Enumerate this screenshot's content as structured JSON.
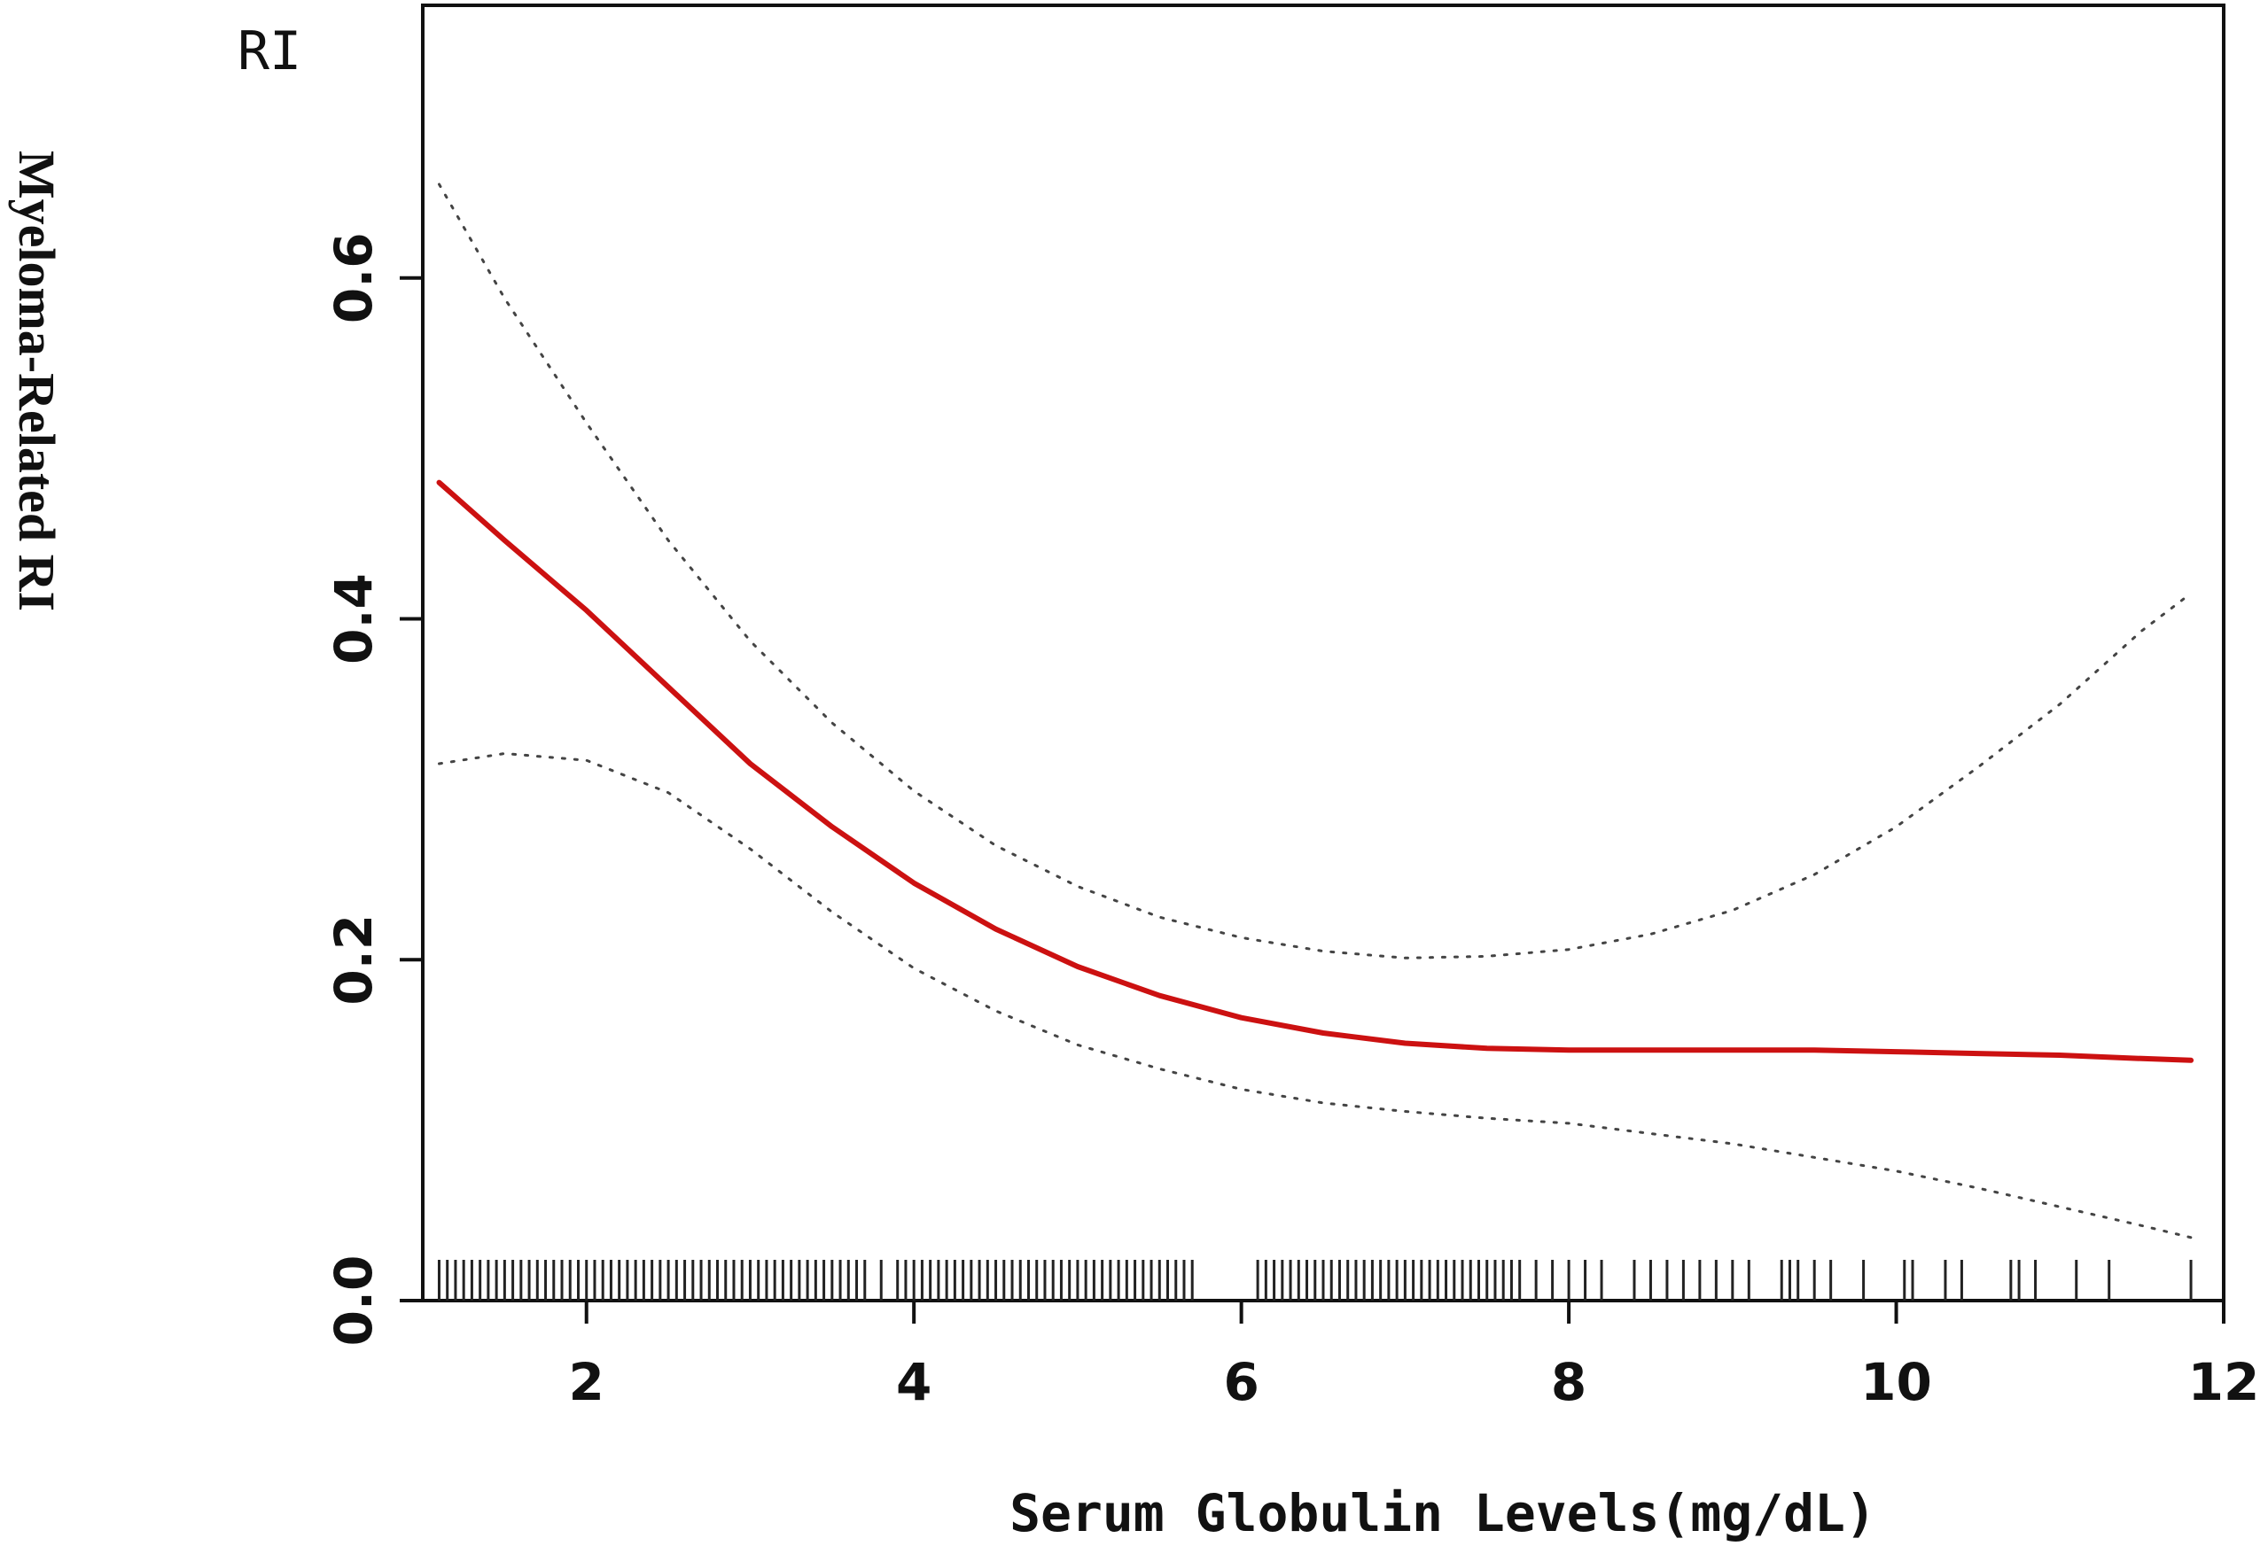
{
  "chart_data": {
    "type": "line",
    "panel_label": "RI",
    "xlabel": "Serum Globulin Levels(mg/dL)",
    "ylabel": "Myeloma-Related RI",
    "xlim": [
      1.0,
      12.0
    ],
    "ylim": [
      0.0,
      0.76
    ],
    "x_ticks": [
      2,
      4,
      6,
      8,
      10,
      12
    ],
    "x_tick_labels": [
      "2",
      "4",
      "6",
      "8",
      "10",
      "12"
    ],
    "y_ticks": [
      0.0,
      0.2,
      0.4,
      0.6
    ],
    "y_tick_labels": [
      "0.0",
      "0.2",
      "0.4",
      "0.6"
    ],
    "grid": false,
    "series": [
      {
        "role": "estimate",
        "style": "solid",
        "color": "#cc1111",
        "x": [
          1.1,
          1.5,
          2.0,
          2.5,
          3.0,
          3.5,
          4.0,
          4.5,
          5.0,
          5.5,
          6.0,
          6.5,
          7.0,
          7.5,
          8.0,
          8.5,
          9.0,
          9.5,
          10.0,
          10.5,
          11.0,
          11.5,
          11.8
        ],
        "y": [
          0.48,
          0.446,
          0.405,
          0.36,
          0.315,
          0.278,
          0.245,
          0.218,
          0.196,
          0.179,
          0.166,
          0.157,
          0.151,
          0.148,
          0.147,
          0.147,
          0.147,
          0.147,
          0.146,
          0.145,
          0.144,
          0.142,
          0.141
        ]
      },
      {
        "role": "upper_ci",
        "style": "dotted",
        "color": "#444444",
        "x": [
          1.1,
          1.5,
          2.0,
          2.5,
          3.0,
          3.5,
          4.0,
          4.5,
          5.0,
          5.5,
          6.0,
          6.5,
          7.0,
          7.5,
          8.0,
          8.5,
          9.0,
          9.5,
          10.0,
          10.5,
          11.0,
          11.5,
          11.8
        ],
        "y": [
          0.655,
          0.588,
          0.515,
          0.446,
          0.387,
          0.339,
          0.299,
          0.267,
          0.243,
          0.225,
          0.213,
          0.205,
          0.201,
          0.202,
          0.206,
          0.215,
          0.229,
          0.25,
          0.278,
          0.313,
          0.35,
          0.393,
          0.415
        ]
      },
      {
        "role": "lower_ci",
        "style": "dotted",
        "color": "#444444",
        "x": [
          1.1,
          1.5,
          2.0,
          2.5,
          3.0,
          3.5,
          4.0,
          4.5,
          5.0,
          5.5,
          6.0,
          6.5,
          7.0,
          7.5,
          8.0,
          8.5,
          9.0,
          9.5,
          10.0,
          10.5,
          11.0,
          11.5,
          11.8
        ],
        "y": [
          0.315,
          0.321,
          0.317,
          0.298,
          0.265,
          0.228,
          0.195,
          0.17,
          0.15,
          0.136,
          0.124,
          0.116,
          0.111,
          0.107,
          0.104,
          0.098,
          0.092,
          0.084,
          0.076,
          0.066,
          0.055,
          0.044,
          0.037
        ]
      }
    ],
    "rug_x": [
      1.1,
      1.15,
      1.2,
      1.25,
      1.3,
      1.35,
      1.4,
      1.45,
      1.5,
      1.55,
      1.6,
      1.65,
      1.7,
      1.75,
      1.8,
      1.85,
      1.9,
      1.95,
      2.0,
      2.05,
      2.1,
      2.15,
      2.2,
      2.25,
      2.3,
      2.35,
      2.4,
      2.45,
      2.5,
      2.55,
      2.6,
      2.65,
      2.7,
      2.75,
      2.8,
      2.85,
      2.9,
      2.95,
      3.0,
      3.05,
      3.1,
      3.15,
      3.2,
      3.25,
      3.3,
      3.35,
      3.4,
      3.45,
      3.5,
      3.55,
      3.6,
      3.65,
      3.7,
      3.8,
      3.9,
      3.95,
      4.0,
      4.05,
      4.1,
      4.15,
      4.2,
      4.25,
      4.3,
      4.35,
      4.4,
      4.45,
      4.5,
      4.55,
      4.6,
      4.65,
      4.7,
      4.75,
      4.8,
      4.85,
      4.9,
      4.95,
      5.0,
      5.05,
      5.1,
      5.15,
      5.2,
      5.25,
      5.3,
      5.35,
      5.4,
      5.45,
      5.5,
      5.55,
      5.6,
      5.65,
      5.7,
      6.1,
      6.15,
      6.2,
      6.25,
      6.3,
      6.35,
      6.4,
      6.45,
      6.5,
      6.55,
      6.6,
      6.65,
      6.7,
      6.75,
      6.8,
      6.85,
      6.9,
      6.95,
      7.0,
      7.05,
      7.1,
      7.15,
      7.2,
      7.25,
      7.3,
      7.35,
      7.4,
      7.45,
      7.5,
      7.55,
      7.6,
      7.65,
      7.7,
      7.8,
      7.9,
      8.0,
      8.1,
      8.2,
      8.4,
      8.5,
      8.6,
      8.7,
      8.8,
      8.9,
      9.0,
      9.1,
      9.3,
      9.35,
      9.4,
      9.5,
      9.6,
      9.8,
      10.05,
      10.1,
      10.3,
      10.4,
      10.7,
      10.75,
      10.85,
      11.1,
      11.3,
      11.8
    ]
  }
}
